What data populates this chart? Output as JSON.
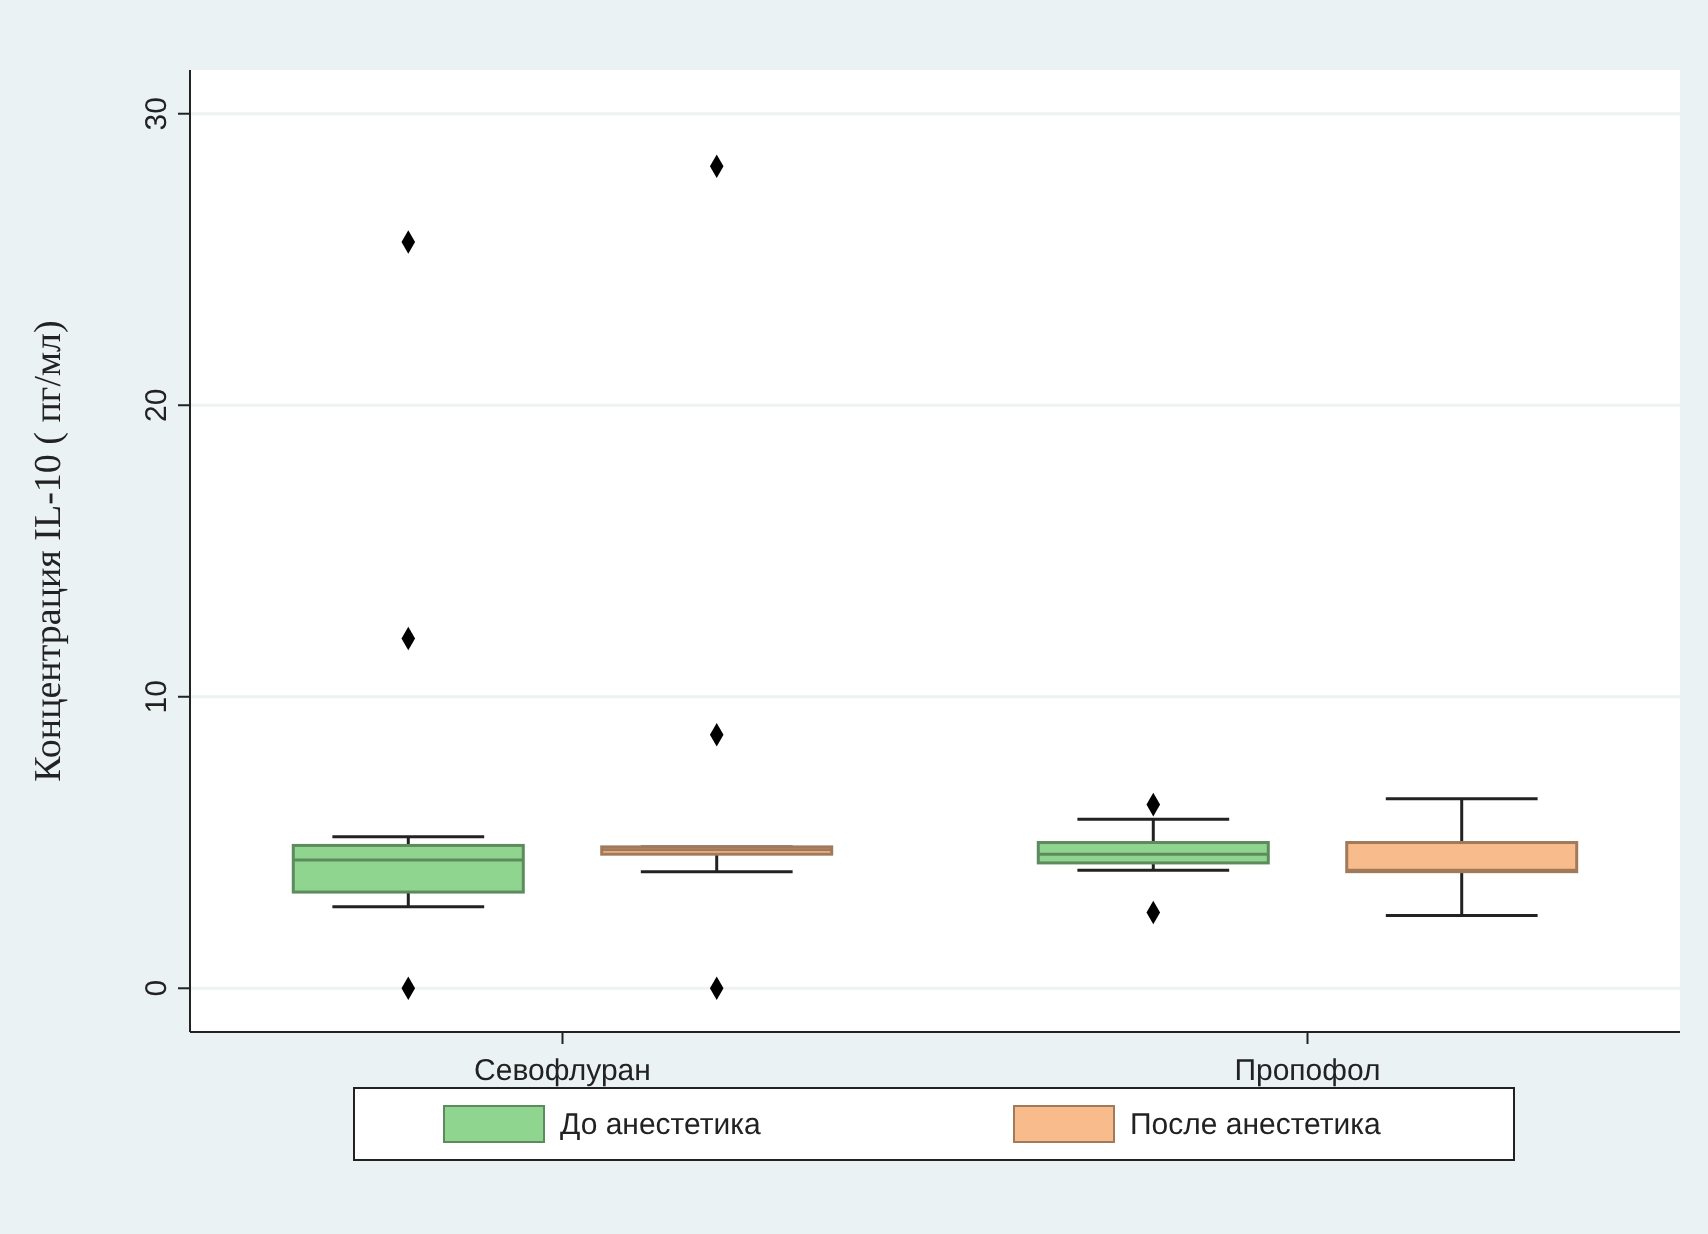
{
  "chart_data": {
    "type": "box",
    "ylabel": "Концентрация IL-10 ( пг/мл)",
    "categories": [
      "Севофлуран",
      "Пропофол"
    ],
    "series": [
      {
        "name": "До анестетика",
        "color": "#8fd58f",
        "boxes": [
          {
            "low": 2.8,
            "q1": 3.3,
            "median": 4.4,
            "q3": 4.9,
            "high": 5.2,
            "outliers": [
              0,
              12,
              25.6
            ]
          },
          {
            "low": 4.05,
            "q1": 4.3,
            "median": 4.6,
            "q3": 5.0,
            "high": 5.8,
            "outliers": [
              2.6,
              6.3
            ]
          }
        ]
      },
      {
        "name": "После анестетика",
        "color": "#f7bb8c",
        "boxes": [
          {
            "low": 4.0,
            "q1": 4.6,
            "median": 4.75,
            "q3": 4.85,
            "high": 4.85,
            "outliers": [
              0,
              8.7,
              28.2
            ]
          },
          {
            "low": 2.5,
            "q1": 4.0,
            "median": 4.05,
            "q3": 5.0,
            "high": 6.5
          }
        ]
      }
    ],
    "ylim": [
      -1.5,
      31.5
    ],
    "yticks": [
      0,
      10,
      20,
      30
    ],
    "grid": "y",
    "legend": "bottom"
  }
}
